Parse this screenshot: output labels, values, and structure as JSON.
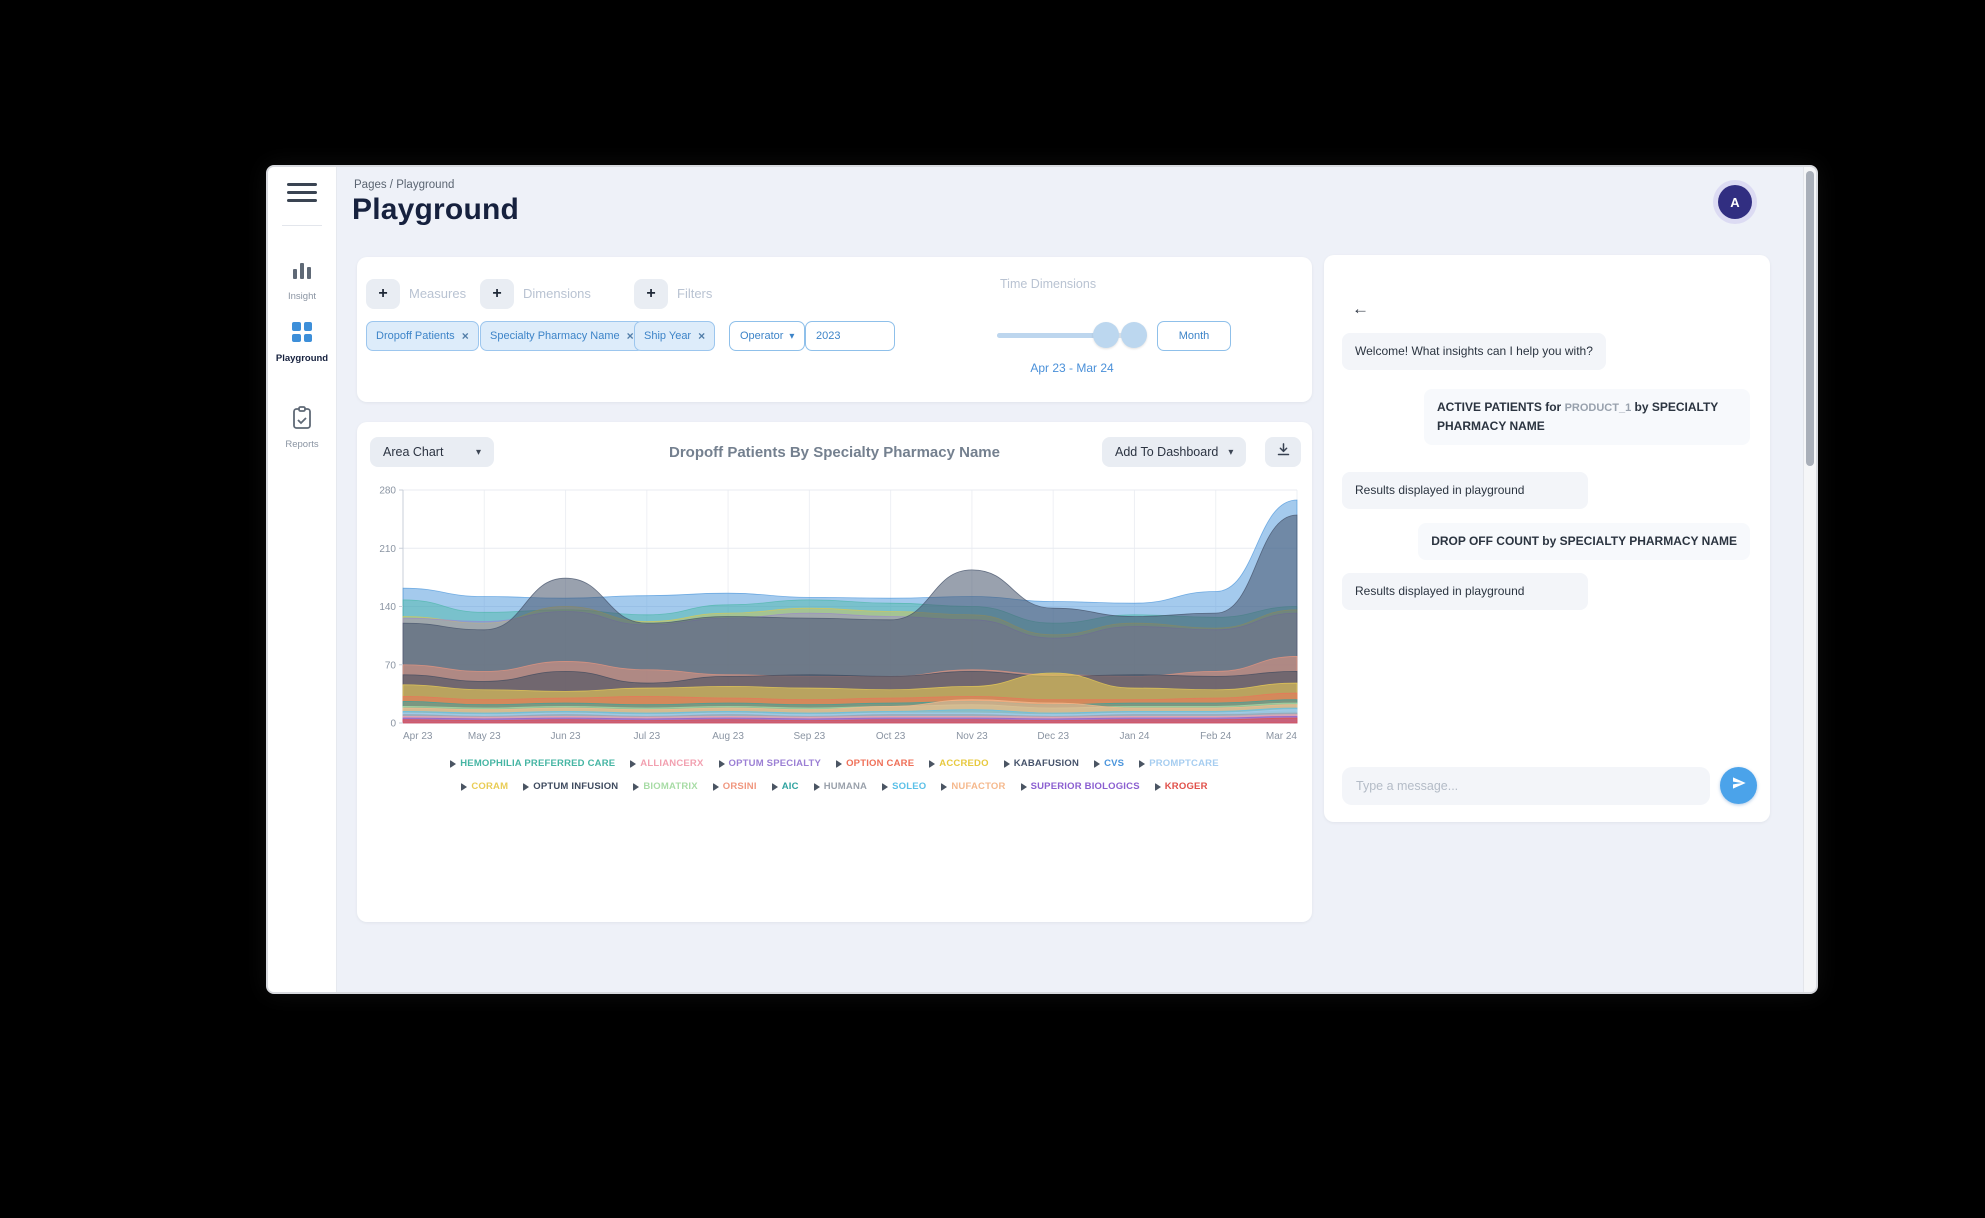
{
  "header": {
    "breadcrumb": "Pages / Playground",
    "title": "Playground",
    "avatar_initial": "A"
  },
  "sidebar": {
    "items": [
      {
        "label": "Insight"
      },
      {
        "label": "Playground"
      },
      {
        "label": "Reports"
      }
    ]
  },
  "query_builder": {
    "measures": {
      "label": "Measures",
      "chips": [
        {
          "text": "Dropoff Patients"
        }
      ]
    },
    "dimensions": {
      "label": "Dimensions",
      "chips": [
        {
          "text": "Specialty Pharmacy Name"
        }
      ]
    },
    "filters": {
      "label": "Filters",
      "chips": [
        {
          "text": "Ship Year"
        }
      ],
      "operator_label": "Operator",
      "value": "2023"
    },
    "time_dimensions": {
      "label": "Time Dimensions",
      "granularity": "Month",
      "date_range": "Apr 23 - Mar 24"
    }
  },
  "chart_card": {
    "chart_type_selector": "Area Chart",
    "title": "Dropoff Patients By Specialty Pharmacy Name",
    "add_to_dashboard_label": "Add To Dashboard"
  },
  "chart_data": {
    "type": "area",
    "title": "Dropoff Patients By Specialty Pharmacy Name",
    "xlabel": "",
    "ylabel": "",
    "x": [
      "Apr 23",
      "May 23",
      "Jun 23",
      "Jul 23",
      "Aug 23",
      "Sep 23",
      "Oct 23",
      "Nov 23",
      "Dec 23",
      "Jan 24",
      "Feb 24",
      "Mar 24"
    ],
    "ylim": [
      0,
      280
    ],
    "yticks": [
      0,
      70,
      140,
      210,
      280
    ],
    "grid": true,
    "legend_position": "bottom",
    "series": [
      {
        "name": "HEMOPHILIA PREFERRED CARE",
        "color": "#45b5a3",
        "row": 1,
        "draw": 1,
        "opacity": 0.45,
        "values": [
          148,
          133,
          136,
          130,
          142,
          148,
          144,
          140,
          120,
          130,
          127,
          140
        ]
      },
      {
        "name": "ALLIANCERX",
        "color": "#f2a0b0",
        "row": 1,
        "draw": 15,
        "opacity": 0.6,
        "values": [
          8,
          7,
          8,
          7,
          8,
          7,
          8,
          8,
          7,
          8,
          8,
          10
        ]
      },
      {
        "name": "OPTUM SPECIALTY",
        "color": "#9b7fd4",
        "row": 1,
        "draw": 3,
        "opacity": 0.4,
        "values": [
          126,
          122,
          134,
          118,
          126,
          132,
          128,
          124,
          102,
          116,
          112,
          132
        ]
      },
      {
        "name": "OPTION CARE",
        "color": "#ef7058",
        "row": 1,
        "draw": 8,
        "opacity": 0.5,
        "values": [
          32,
          28,
          30,
          32,
          30,
          28,
          30,
          32,
          28,
          28,
          30,
          36
        ]
      },
      {
        "name": "ACCREDO",
        "color": "#e7c93f",
        "row": 1,
        "draw": 2,
        "opacity": 0.4,
        "values": [
          128,
          120,
          140,
          122,
          132,
          138,
          134,
          130,
          106,
          120,
          114,
          136
        ]
      },
      {
        "name": "KABAFUSION",
        "color": "#46536b",
        "row": 1,
        "draw": 4,
        "opacity": 0.55,
        "values": [
          120,
          112,
          174,
          120,
          128,
          126,
          124,
          184,
          138,
          128,
          132,
          250
        ]
      },
      {
        "name": "CVS",
        "color": "#4a95dc",
        "row": 1,
        "draw": 0,
        "opacity": 0.5,
        "values": [
          162,
          152,
          150,
          153,
          156,
          151,
          150,
          152,
          146,
          144,
          158,
          268
        ]
      },
      {
        "name": "PROMPTCARE",
        "color": "#a6cdf0",
        "row": 1,
        "draw": 13,
        "opacity": 0.6,
        "values": [
          12,
          10,
          12,
          10,
          12,
          10,
          12,
          12,
          10,
          12,
          12,
          16
        ]
      },
      {
        "name": "CORAM",
        "color": "#e9cc55",
        "row": 2,
        "draw": 7,
        "opacity": 0.6,
        "values": [
          46,
          40,
          38,
          42,
          44,
          42,
          40,
          44,
          60,
          42,
          40,
          48
        ]
      },
      {
        "name": "OPTUM INFUSION",
        "color": "#3e4a5e",
        "row": 2,
        "draw": 6,
        "opacity": 0.55,
        "values": [
          58,
          50,
          62,
          48,
          56,
          58,
          56,
          62,
          56,
          58,
          56,
          62
        ]
      },
      {
        "name": "BIOMATRIX",
        "color": "#a8dca6",
        "row": 2,
        "draw": 10,
        "opacity": 0.6,
        "values": [
          20,
          18,
          20,
          18,
          20,
          18,
          20,
          22,
          18,
          20,
          20,
          24
        ]
      },
      {
        "name": "ORSINI",
        "color": "#f0977f",
        "row": 2,
        "draw": 5,
        "opacity": 0.5,
        "values": [
          70,
          62,
          74,
          64,
          58,
          56,
          56,
          64,
          58,
          56,
          62,
          80
        ]
      },
      {
        "name": "AIC",
        "color": "#2fa3a0",
        "row": 2,
        "draw": 9,
        "opacity": 0.55,
        "values": [
          26,
          22,
          24,
          22,
          24,
          22,
          24,
          26,
          22,
          24,
          24,
          28
        ]
      },
      {
        "name": "HUMANA",
        "color": "#9aa1ab",
        "row": 2,
        "draw": 14,
        "opacity": 0.6,
        "values": [
          10,
          8,
          10,
          8,
          10,
          8,
          10,
          10,
          8,
          10,
          10,
          12
        ]
      },
      {
        "name": "SOLEO",
        "color": "#5bc0e8",
        "row": 2,
        "draw": 12,
        "opacity": 0.6,
        "values": [
          14,
          12,
          14,
          12,
          14,
          12,
          14,
          16,
          12,
          14,
          14,
          18
        ]
      },
      {
        "name": "NUFACTOR",
        "color": "#f5b98d",
        "row": 2,
        "draw": 11,
        "opacity": 0.65,
        "values": [
          18,
          16,
          18,
          16,
          18,
          16,
          20,
          28,
          24,
          18,
          18,
          22
        ]
      },
      {
        "name": "SUPERIOR BIOLOGICS",
        "color": "#8b5fd0",
        "row": 2,
        "draw": 16,
        "opacity": 0.6,
        "values": [
          6,
          5,
          6,
          5,
          6,
          5,
          6,
          6,
          5,
          6,
          6,
          8
        ]
      },
      {
        "name": "KROGER",
        "color": "#e0504a",
        "row": 2,
        "draw": 17,
        "opacity": 0.6,
        "values": [
          4,
          3,
          4,
          3,
          4,
          3,
          4,
          4,
          3,
          4,
          4,
          6
        ]
      }
    ]
  },
  "chat": {
    "messages": [
      {
        "role": "bot",
        "text": "Welcome! What insights can I help you with?"
      },
      {
        "role": "user",
        "text_before": "ACTIVE PATIENTS for ",
        "token": "PRODUCT_1",
        "text_after": " by SPECIALTY PHARMACY NAME"
      },
      {
        "role": "bot",
        "text": "Results displayed in playground"
      },
      {
        "role": "user",
        "text": "DROP OFF COUNT by SPECIALTY PHARMACY NAME"
      },
      {
        "role": "bot",
        "text": "Results displayed in playground"
      }
    ],
    "input_placeholder": "Type a message..."
  },
  "colors": {
    "accent_blue": "#4a95dc",
    "chip_bg": "#ddecfa",
    "chip_border": "#9cc6ee",
    "chip_text": "#3d84c8",
    "avatar_bg": "#312e81",
    "send_button": "#4ba3ea",
    "window_bg": "#eef1f8",
    "title_text": "#16213e"
  }
}
